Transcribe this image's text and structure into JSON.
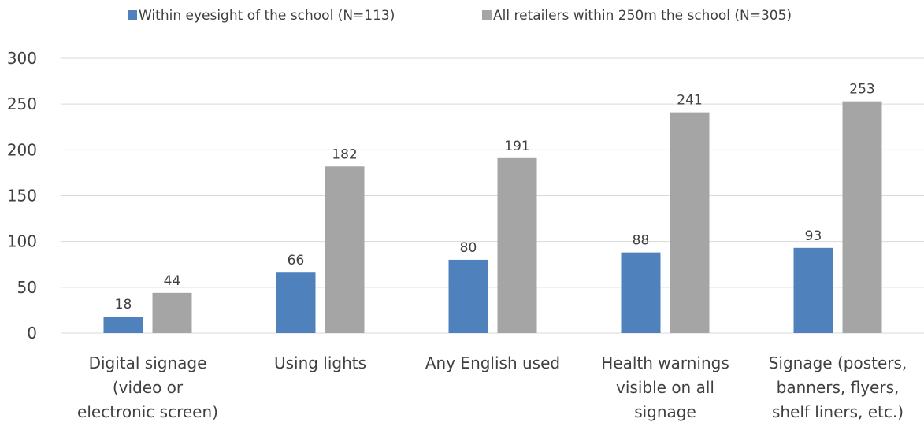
{
  "chart_data": {
    "type": "bar",
    "categories": [
      [
        "Digital signage",
        "(video or",
        "electronic screen)"
      ],
      [
        "Using lights"
      ],
      [
        "Any English used"
      ],
      [
        "Health warnings",
        "visible on all",
        "signage"
      ],
      [
        "Signage (posters,",
        "banners, flyers,",
        "shelf liners, etc.)"
      ]
    ],
    "series": [
      {
        "name": "Within eyesight of the school (N=113)",
        "color": "#4f81bd",
        "values": [
          18,
          66,
          80,
          88,
          93
        ]
      },
      {
        "name": "All retailers within 250m the school (N=305)",
        "color": "#a5a5a5",
        "values": [
          44,
          182,
          191,
          241,
          253
        ]
      }
    ],
    "ylim": [
      0,
      300
    ],
    "yticks": [
      0,
      50,
      100,
      150,
      200,
      250,
      300
    ],
    "grid": true,
    "legend_position": "top",
    "data_labels": true
  }
}
